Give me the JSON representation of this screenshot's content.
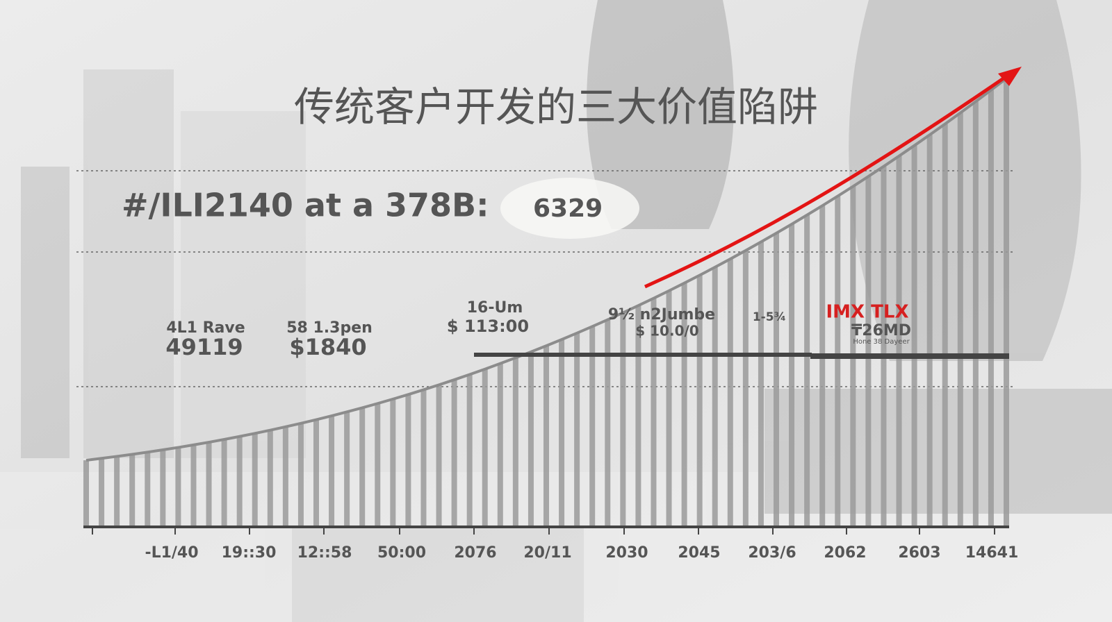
{
  "title": "传统客户开发的三大价值陷阱",
  "headline": {
    "text": "#/ILI2140 at a 378B:",
    "value": "6329"
  },
  "annotations": [
    {
      "label": "4L1 Rave",
      "value": "49119"
    },
    {
      "label": "58 1.3pen",
      "value": "$1840"
    },
    {
      "label": "16-Um",
      "value": "$ 113:00"
    },
    {
      "label": "9½ n2Jumbe",
      "value": "$ 10.0/0"
    },
    {
      "label": "1-5¾"
    },
    {
      "label": "IMX TLX",
      "value": "₸26MD",
      "note": "Hone 38 Dayeer"
    }
  ],
  "x_labels": [
    "-L1/40",
    "19::30",
    "12::58",
    "50:00",
    "2076",
    "20/11",
    "2030",
    "2045",
    "203/6",
    "2062",
    "2603",
    "14641"
  ]
}
